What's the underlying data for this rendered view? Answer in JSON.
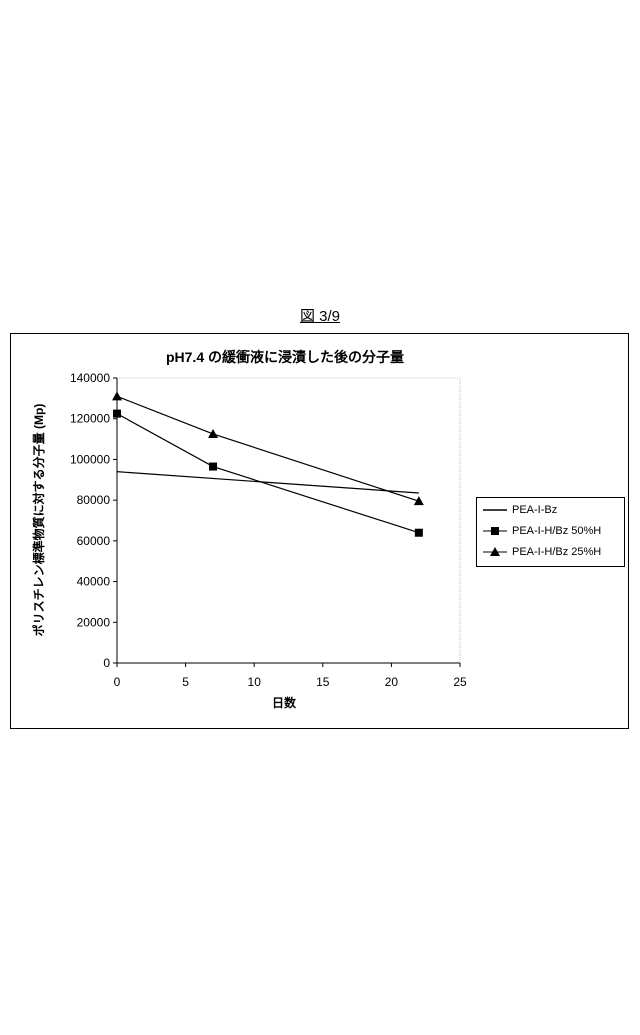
{
  "figure_label": "図 3/9",
  "chart_data": {
    "type": "line",
    "title": "pH7.4 の緩衝液に浸漬した後の分子量",
    "xlabel": "日数",
    "ylabel": "ポリスチレン標準物質に対する分子量 (Mp)",
    "xlim": [
      0,
      25
    ],
    "ylim": [
      0,
      140000
    ],
    "xticks": [
      "0",
      "5",
      "10",
      "15",
      "20",
      "25"
    ],
    "yticks": [
      "0",
      "20000",
      "40000",
      "60000",
      "80000",
      "100000",
      "120000",
      "140000"
    ],
    "grid": false,
    "legend_position": "right",
    "series": [
      {
        "name": "PEA-I-Bz",
        "marker": "none",
        "color": "#000000",
        "x": [
          0,
          22
        ],
        "y": [
          94000,
          83500
        ]
      },
      {
        "name": "PEA-I-H/Bz 50%H",
        "marker": "square",
        "color": "#000000",
        "x": [
          0,
          7,
          22
        ],
        "y": [
          122500,
          96500,
          64000
        ]
      },
      {
        "name": "PEA-I-H/Bz 25%H",
        "marker": "triangle",
        "color": "#000000",
        "x": [
          0,
          7,
          22
        ],
        "y": [
          131000,
          112500,
          79500
        ]
      }
    ]
  }
}
